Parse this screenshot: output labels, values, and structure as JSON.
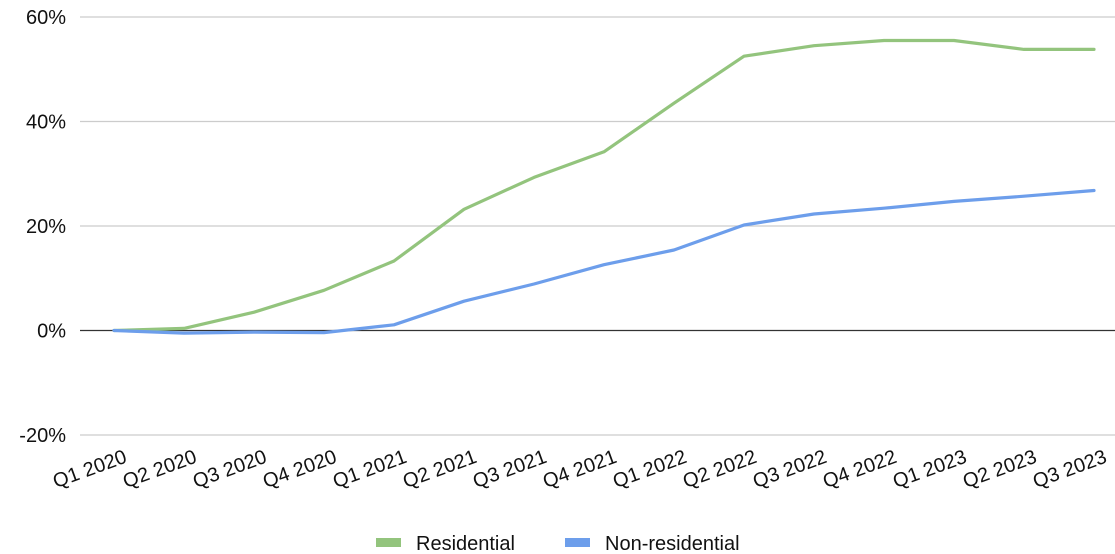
{
  "chart_data": {
    "type": "line",
    "title": "",
    "xlabel": "",
    "ylabel": "",
    "categories": [
      "Q1 2020",
      "Q2 2020",
      "Q3 2020",
      "Q4 2020",
      "Q1 2021",
      "Q2 2021",
      "Q3 2021",
      "Q4 2021",
      "Q1 2022",
      "Q2 2022",
      "Q3 2022",
      "Q4 2022",
      "Q1 2023",
      "Q2 2023",
      "Q3 2023"
    ],
    "series": [
      {
        "name": "Residential",
        "color": "#93c47d",
        "values": [
          0,
          0.4,
          3.5,
          7.7,
          13.3,
          23.2,
          29.3,
          34.2,
          43.5,
          52.5,
          54.5,
          55.5,
          55.5,
          53.8,
          53.8
        ]
      },
      {
        "name": "Non-residential",
        "color": "#6d9eeb",
        "values": [
          0,
          -0.5,
          -0.3,
          -0.4,
          1.1,
          5.6,
          8.9,
          12.6,
          15.4,
          20.2,
          22.3,
          23.4,
          24.7,
          25.7,
          26.8
        ]
      }
    ],
    "ylim": [
      -20,
      60
    ],
    "yticks": [
      -20,
      0,
      20,
      40,
      60
    ],
    "ytick_labels": [
      "-20%",
      "0%",
      "20%",
      "40%",
      "60%"
    ],
    "grid": true,
    "legend_position": "bottom"
  }
}
